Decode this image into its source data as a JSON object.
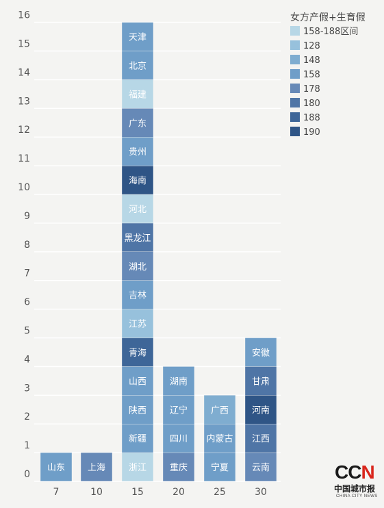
{
  "colors": {
    "background": "#f4f4f2",
    "c158_188": "#b7d7e6",
    "c128": "#97c1dc",
    "c148": "#7fadd0",
    "c158": "#6f9ec8",
    "c178": "#6689b7",
    "c180": "#4f75a6",
    "c188": "#3e6698",
    "c190": "#2f5586"
  },
  "chart_data": {
    "type": "bar",
    "stacked": true,
    "categories": [
      "7",
      "10",
      "15",
      "20",
      "25",
      "30"
    ],
    "ylim": [
      0,
      16
    ],
    "yticks": [
      0,
      1,
      2,
      3,
      4,
      5,
      6,
      7,
      8,
      9,
      10,
      11,
      12,
      13,
      14,
      15,
      16
    ],
    "grid": true,
    "legend_position": "top-right",
    "legend_title": "女方产假+生育假",
    "legend": [
      {
        "key": "158-188",
        "label": "158-188区间",
        "color": "#b7d7e6"
      },
      {
        "key": "128",
        "label": "128",
        "color": "#97c1dc"
      },
      {
        "key": "148",
        "label": "148",
        "color": "#7fadd0"
      },
      {
        "key": "158",
        "label": "158",
        "color": "#6f9ec8"
      },
      {
        "key": "178",
        "label": "178",
        "color": "#6689b7"
      },
      {
        "key": "180",
        "label": "180",
        "color": "#4f75a6"
      },
      {
        "key": "188",
        "label": "188",
        "color": "#3e6698"
      },
      {
        "key": "190",
        "label": "190",
        "color": "#2f5586"
      }
    ],
    "stacks": [
      {
        "x": "7",
        "items": [
          {
            "label": "山东",
            "group": "158"
          }
        ]
      },
      {
        "x": "10",
        "items": [
          {
            "label": "上海",
            "group": "178"
          }
        ]
      },
      {
        "x": "15",
        "items": [
          {
            "label": "浙江",
            "group": "158-188"
          },
          {
            "label": "新疆",
            "group": "158"
          },
          {
            "label": "陕西",
            "group": "158"
          },
          {
            "label": "山西",
            "group": "158"
          },
          {
            "label": "青海",
            "group": "188"
          },
          {
            "label": "江苏",
            "group": "128"
          },
          {
            "label": "吉林",
            "group": "158"
          },
          {
            "label": "湖北",
            "group": "178"
          },
          {
            "label": "黑龙江",
            "group": "180"
          },
          {
            "label": "河北",
            "group": "158-188"
          },
          {
            "label": "海南",
            "group": "190"
          },
          {
            "label": "贵州",
            "group": "158"
          },
          {
            "label": "广东",
            "group": "178"
          },
          {
            "label": "福建",
            "group": "158-188"
          },
          {
            "label": "北京",
            "group": "158"
          },
          {
            "label": "天津",
            "group": "158"
          }
        ]
      },
      {
        "x": "20",
        "items": [
          {
            "label": "重庆",
            "group": "178"
          },
          {
            "label": "四川",
            "group": "158"
          },
          {
            "label": "辽宁",
            "group": "158"
          },
          {
            "label": "湖南",
            "group": "158"
          }
        ]
      },
      {
        "x": "25",
        "items": [
          {
            "label": "宁夏",
            "group": "158"
          },
          {
            "label": "内蒙古",
            "group": "158"
          },
          {
            "label": "广西",
            "group": "148"
          }
        ]
      },
      {
        "x": "30",
        "items": [
          {
            "label": "云南",
            "group": "178"
          },
          {
            "label": "江西",
            "group": "180"
          },
          {
            "label": "河南",
            "group": "190"
          },
          {
            "label": "甘肃",
            "group": "180"
          },
          {
            "label": "安徽",
            "group": "158"
          }
        ]
      }
    ]
  },
  "logo": {
    "ccn_part1": "CC",
    "ccn_part2": "N",
    "name_cn": "中国城市报",
    "name_en": "CHINA CITY NEWS"
  }
}
